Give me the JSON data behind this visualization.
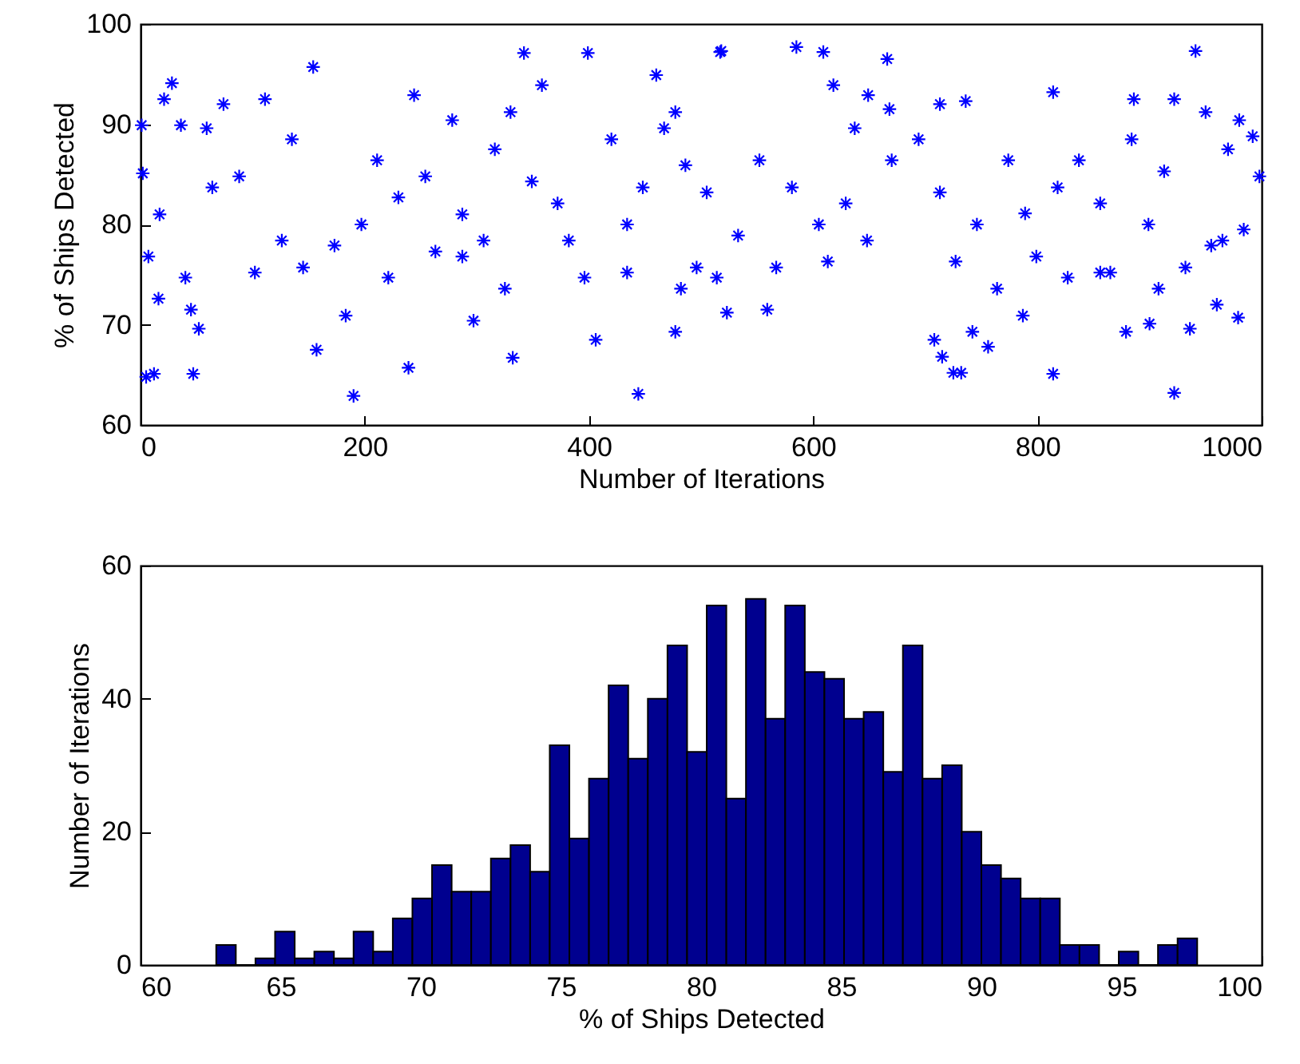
{
  "chart_data": [
    {
      "type": "scatter",
      "xlabel": "Number of Iterations",
      "ylabel": "% of Ships Detected",
      "xlim": [
        0,
        1000
      ],
      "xticks": [
        0,
        200,
        400,
        600,
        800,
        1000
      ],
      "ylim": [
        60,
        100
      ],
      "yticks": [
        60,
        70,
        80,
        90,
        100
      ],
      "marker": "cross",
      "grid": false,
      "series": [
        {
          "color": "#0000ff",
          "x": [
            1,
            2,
            5,
            12,
            28,
            21,
            16,
            47,
            45,
            52,
            36,
            59,
            74,
            111,
            154,
            157,
            190,
            183,
            244,
            239,
            342,
            332,
            358,
            399,
            444,
            460,
            517,
            278,
            330,
            297,
            406,
            477,
            17,
            64,
            88,
            135,
            126,
            173,
            197,
            230,
            254,
            263,
            211,
            287,
            316,
            306,
            349,
            372,
            382,
            420,
            434,
            448,
            467,
            486,
            505,
            496,
            434,
            396,
            325,
            287,
            221,
            145,
            102,
            40,
            7,
            477,
            482,
            518,
            585,
            609,
            666,
            941,
            922,
            814,
            725,
            732,
            715,
            708,
            756,
            742,
            879,
            900,
            936,
            979,
            523,
            559,
            618,
            649,
            668,
            713,
            736,
            814,
            886,
            922,
            950,
            980,
            992,
            552,
            581,
            605,
            629,
            648,
            670,
            694,
            713,
            727,
            746,
            774,
            789,
            799,
            818,
            837,
            856,
            865,
            884,
            899,
            913,
            932,
            955,
            970,
            984,
            998,
            533,
            514,
            567,
            613,
            637,
            764,
            787,
            827,
            856,
            908,
            960,
            965
          ],
          "values": [
            89.9,
            85.1,
            64.8,
            65.1,
            94.1,
            92.5,
            72.6,
            65.1,
            71.5,
            69.6,
            89.9,
            89.6,
            92,
            92.5,
            95.7,
            67.5,
            62.9,
            70.9,
            92.9,
            65.7,
            97.1,
            66.7,
            93.9,
            97.1,
            63.1,
            94.9,
            97.2,
            90.4,
            91.2,
            70.4,
            68.5,
            69.3,
            81,
            83.7,
            84.8,
            88.5,
            78.4,
            77.9,
            80,
            82.7,
            84.8,
            77.3,
            86.4,
            81,
            87.5,
            78.4,
            84.3,
            82.1,
            78.4,
            88.5,
            80,
            83.7,
            89.6,
            85.9,
            83.2,
            75.7,
            75.2,
            74.7,
            73.6,
            76.8,
            74.7,
            75.7,
            75.2,
            74.7,
            76.8,
            91.2,
            73.6,
            97.3,
            97.7,
            97.2,
            96.5,
            97.3,
            63.2,
            65.1,
            65.2,
            65.2,
            66.8,
            68.5,
            67.8,
            69.3,
            69.3,
            70.1,
            69.6,
            70.7,
            71.2,
            71.5,
            93.9,
            92.9,
            91.5,
            92,
            92.3,
            93.2,
            92.5,
            92.5,
            91.2,
            90.4,
            88.8,
            86.4,
            83.7,
            80,
            82.1,
            78.4,
            86.4,
            88.5,
            83.2,
            76.3,
            80,
            86.4,
            81.1,
            76.8,
            83.7,
            86.4,
            82.1,
            75.2,
            88.5,
            80,
            85.3,
            75.7,
            77.9,
            87.5,
            79.5,
            84.8,
            78.9,
            74.7,
            75.7,
            76.3,
            89.6,
            73.6,
            70.9,
            74.7,
            75.2,
            73.6,
            72,
            78.4
          ]
        }
      ]
    },
    {
      "type": "histogram",
      "xlabel": "% of Ships Detected",
      "ylabel": "Number of Iterations",
      "xlim": [
        60,
        100
      ],
      "xticks": [
        60,
        65,
        70,
        75,
        80,
        85,
        90,
        95,
        100
      ],
      "ylim": [
        0,
        60
      ],
      "yticks": [
        0,
        20,
        40,
        60
      ],
      "grid": false,
      "bins": [
        62.7,
        63.4,
        64.1,
        64.8,
        65.5,
        66.2,
        66.9,
        67.6,
        68.3,
        69.0,
        69.7,
        70.4,
        71.1,
        71.8,
        72.5,
        73.2,
        73.9,
        74.6,
        75.3,
        76.0,
        76.7,
        77.4,
        78.1,
        78.8,
        79.5,
        80.2,
        80.9,
        81.6,
        82.3,
        83.0,
        83.7,
        84.4,
        85.1,
        85.8,
        86.5,
        87.2,
        87.9,
        88.6,
        89.3,
        90.0,
        90.7,
        91.4,
        92.1,
        92.8,
        93.5,
        94.2,
        94.9,
        95.6,
        96.3,
        97.0,
        97.7
      ],
      "series": [
        {
          "color": "#00008f",
          "values": [
            3,
            0,
            1,
            5,
            1,
            2,
            1,
            5,
            2,
            7,
            10,
            15,
            11,
            11,
            16,
            18,
            14,
            33,
            19,
            28,
            42,
            31,
            40,
            48,
            32,
            54,
            25,
            55,
            37,
            54,
            44,
            43,
            37,
            38,
            29,
            48,
            28,
            30,
            20,
            15,
            13,
            10,
            10,
            3,
            3,
            0,
            2,
            0,
            3,
            4
          ]
        }
      ]
    }
  ]
}
